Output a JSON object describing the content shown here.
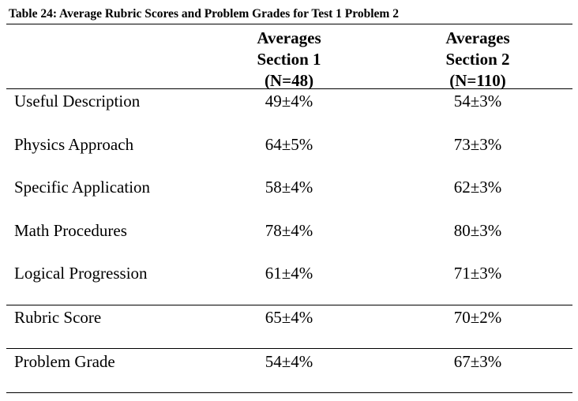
{
  "caption": "Table 24: Average Rubric Scores and Problem Grades for Test 1 Problem 2",
  "columns": [
    {
      "line1": "Averages",
      "line2": "Section 1",
      "line3": "(N=48)"
    },
    {
      "line1": "Averages",
      "line2": "Section 2",
      "line3": "(N=110)"
    }
  ],
  "rows": [
    {
      "label": "Useful Description",
      "section1": "49±4%",
      "section2": "54±3%"
    },
    {
      "label": "Physics Approach",
      "section1": "64±5%",
      "section2": "73±3%"
    },
    {
      "label": "Specific Application",
      "section1": "58±4%",
      "section2": "62±3%"
    },
    {
      "label": "Math Procedures",
      "section1": "78±4%",
      "section2": "80±3%"
    },
    {
      "label": "Logical Progression",
      "section1": "61±4%",
      "section2": "71±3%"
    },
    {
      "label": "Rubric Score",
      "section1": "65±4%",
      "section2": "70±2%"
    },
    {
      "label": "Problem Grade",
      "section1": "54±4%",
      "section2": "67±3%"
    }
  ]
}
